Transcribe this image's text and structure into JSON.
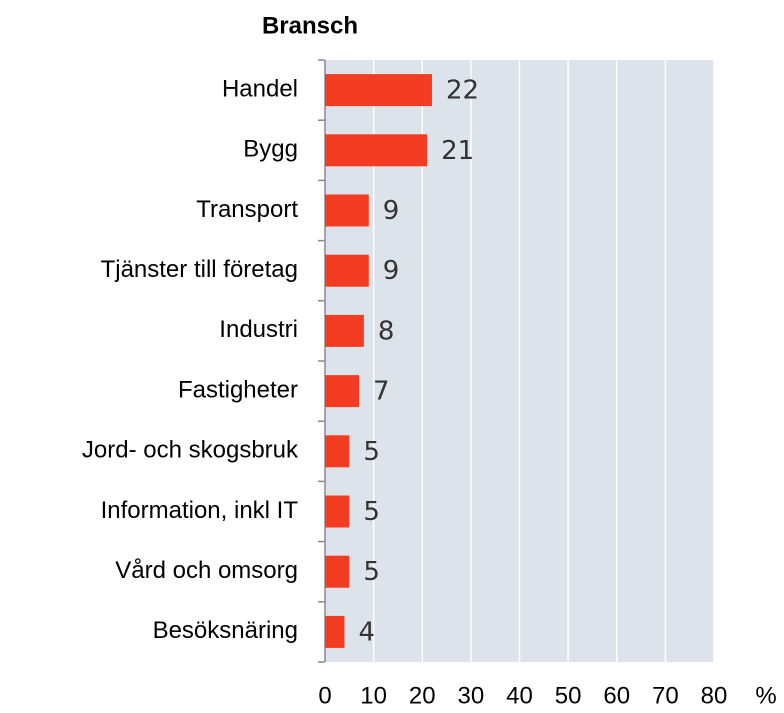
{
  "chart_data": {
    "type": "bar",
    "orientation": "horizontal",
    "title": "Bransch",
    "categories": [
      "Handel",
      "Bygg",
      "Transport",
      "Tjänster till företag",
      "Industri",
      "Fastigheter",
      "Jord- och skogsbruk",
      "Information, inkl IT",
      "Vård och omsorg",
      "Besöksnäring"
    ],
    "values": [
      22,
      21,
      9,
      9,
      8,
      7,
      5,
      5,
      5,
      4
    ],
    "color": "#f33c22",
    "xlabel": "%",
    "xlim": [
      0,
      80
    ],
    "xticks": [
      0,
      10,
      20,
      30,
      40,
      50,
      60,
      70,
      80
    ],
    "grid": true
  }
}
